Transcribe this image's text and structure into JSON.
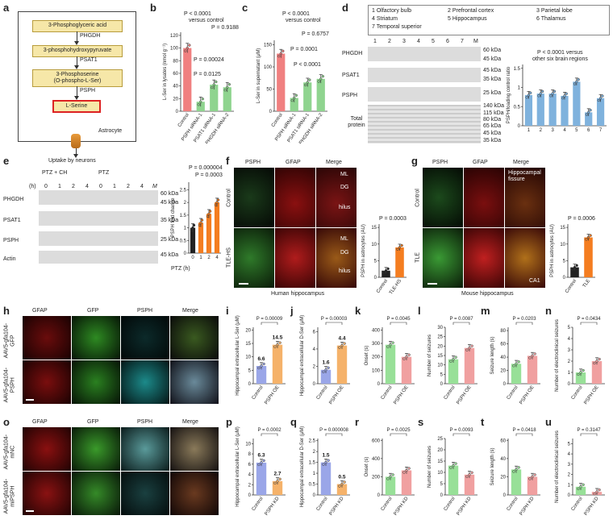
{
  "panels": {
    "a": {
      "label": "a",
      "pathway": [
        "3-Phosphoglyceric acid",
        "3-phosphohydroxypyruvate",
        "3-Phosphoserine\n(O-phospho-L-Ser)",
        "L-Serine"
      ],
      "enzymes": [
        "PHGDH",
        "PSAT1",
        "PSPH"
      ],
      "cell": "Astrocyte",
      "uptake": "Uptake by neurons"
    },
    "b": {
      "label": "b",
      "stats": [
        "P < 0.0001",
        "versus control",
        "P = 0.9188",
        "P = 0.00024",
        "P = 0.0125"
      ]
    },
    "c": {
      "label": "c",
      "stats": [
        "P < 0.0001",
        "versus control",
        "P = 0.6757",
        "P = 0.0001",
        "P < 0.0001"
      ]
    },
    "d": {
      "label": "d",
      "legend": [
        "1 Olfactory bulb",
        "2 Prefrontal cortex",
        "3 Parietal lobe",
        "4 Striatum",
        "5 Hippocampus",
        "6 Thalamus",
        "7 Temporal superior"
      ],
      "lanes": [
        "1",
        "2",
        "3",
        "4",
        "5",
        "6",
        "7",
        "M"
      ],
      "rows": [
        "PHGDH",
        "PSAT1",
        "PSPH",
        "Total protein"
      ],
      "mw": [
        "60 kDa",
        "45 kDa",
        "45 kDa",
        "35 kDa",
        "25 kDa",
        "140 kDa",
        "115 kDa",
        "80 kDa",
        "65 kDa",
        "45 kDa",
        "35 kDa"
      ],
      "stats": [
        "P < 0.0001 versus",
        "other six brain regions"
      ]
    },
    "e": {
      "label": "e",
      "conditions": [
        "PTZ + CH",
        "PTZ"
      ],
      "time_label": "(h)",
      "times": [
        "0",
        "1",
        "2",
        "4",
        "0",
        "1",
        "2",
        "4",
        "M"
      ],
      "rows": [
        "PHGDH",
        "PSAT1",
        "PSPH",
        "Actin"
      ],
      "mw": [
        "60 kDa",
        "45 kDa",
        "35 kDa",
        "25 kDa",
        "45 kDa"
      ],
      "stats": [
        "P = 0.000004",
        "P = 0.0003"
      ],
      "xlab": "PTZ (h)"
    },
    "f": {
      "label": "f",
      "cols": [
        "PSPH",
        "GFAP",
        "Merge"
      ],
      "rows": [
        "Control",
        "TLE-HS"
      ],
      "regions": [
        "ML",
        "DG",
        "hilus",
        "ML",
        "DG",
        "hilus"
      ],
      "caption": "Human hippocampus",
      "stats": [
        "P = 0.0003"
      ]
    },
    "g": {
      "label": "g",
      "cols": [
        "PSPH",
        "GFAP",
        "Merge"
      ],
      "rows": [
        "Control",
        "TLE"
      ],
      "regions": [
        "Hippocampal fissure",
        "CA1"
      ],
      "caption": "Mouse hippocampus",
      "stats": [
        "P = 0.0006"
      ]
    },
    "h": {
      "label": "h",
      "cols": [
        "GFAP",
        "GFP",
        "PSPH",
        "Merge"
      ],
      "rows": [
        "AAV5-gfa104-GFP",
        "AAV5-gfa104-PSPH"
      ]
    },
    "o": {
      "label": "o",
      "cols": [
        "GFAP",
        "GFP",
        "PSPH",
        "Merge"
      ],
      "rows": [
        "AAV5-gfa104-mNC",
        "AAV5-gfa104-miPSPH"
      ]
    }
  },
  "chart_data": [
    {
      "id": "b",
      "type": "bar",
      "categories": [
        "Control",
        "PSPH siRNA-1",
        "PSAT1 siRNA-1",
        "PHGDH siRNA-2"
      ],
      "values": [
        100,
        15,
        42,
        38
      ],
      "ylabel": "L-Ser in lysates (nmol g⁻¹)",
      "ylim": [
        0,
        125
      ],
      "yticks": [
        0,
        20,
        40,
        60,
        80,
        100,
        120
      ],
      "colors": [
        "#f08080",
        "#8fd48f",
        "#8fd48f",
        "#8fd48f"
      ]
    },
    {
      "id": "c",
      "type": "bar",
      "categories": [
        "Control",
        "PSPH siRNA-1",
        "PSAT1 siRNA-1",
        "PHGDH siRNA-2"
      ],
      "values": [
        130,
        30,
        65,
        73
      ],
      "ylabel": "L-Ser in supernatant (μM)",
      "ylim": [
        0,
        160
      ],
      "yticks": [
        0,
        50,
        100,
        150
      ],
      "colors": [
        "#f08080",
        "#8fd48f",
        "#8fd48f",
        "#8fd48f"
      ]
    },
    {
      "id": "d",
      "type": "bar",
      "categories": [
        "1",
        "2",
        "3",
        "4",
        "5",
        "6",
        "7"
      ],
      "values": [
        0.8,
        0.84,
        0.84,
        0.78,
        1.15,
        0.35,
        0.72
      ],
      "ylabel": "PSPH/loading control ratio",
      "ylim": [
        0,
        1.6
      ],
      "yticks": [
        0,
        0.5,
        1.0,
        1.5
      ],
      "colors": [
        "#7fb2dd",
        "#7fb2dd",
        "#7fb2dd",
        "#7fb2dd",
        "#7fb2dd",
        "#7fb2dd",
        "#7fb2dd"
      ]
    },
    {
      "id": "e",
      "type": "bar",
      "categories": [
        "0",
        "1",
        "2",
        "4"
      ],
      "values": [
        1.0,
        1.2,
        1.55,
        2.0
      ],
      "ylabel": "PSPH fold change",
      "ylim": [
        0,
        2.8
      ],
      "yticks": [
        0,
        0.5,
        1.0,
        1.5,
        2.0,
        2.5
      ],
      "colors": [
        "#222222",
        "#f47d20",
        "#f47d20",
        "#f47d20"
      ]
    },
    {
      "id": "f",
      "type": "bar",
      "categories": [
        "Control",
        "TLE-HS"
      ],
      "values": [
        2,
        9
      ],
      "ylabel": "PSPH in astrocytes (AU)",
      "ylim": [
        0,
        16
      ],
      "yticks": [
        0,
        5,
        10,
        15
      ],
      "colors": [
        "#222222",
        "#f47d20"
      ]
    },
    {
      "id": "g",
      "type": "bar",
      "categories": [
        "Control",
        "TLE"
      ],
      "values": [
        3,
        12
      ],
      "ylabel": "PSPH in astrocytes (AU)",
      "ylim": [
        0,
        16
      ],
      "yticks": [
        0,
        5,
        10,
        15
      ],
      "colors": [
        "#222222",
        "#f47d20"
      ]
    },
    {
      "id": "i",
      "type": "bar",
      "categories": [
        "Control",
        "PSPH OE"
      ],
      "values": [
        6.6,
        14.5
      ],
      "ylabel": "Hippocampal extracellular L-Ser (μM)",
      "ylim": [
        0,
        21
      ],
      "yticks": [
        0,
        5,
        10,
        15,
        20
      ],
      "colors": [
        "#9aa6e8",
        "#f5b26a"
      ],
      "labels": [
        "6.6",
        "14.5"
      ],
      "stat": "P = 0.00009"
    },
    {
      "id": "j",
      "type": "bar",
      "categories": [
        "Control",
        "PSPH OE"
      ],
      "values": [
        1.6,
        4.4
      ],
      "ylabel": "Hippocampal extracellular D-Ser (μM)",
      "ylim": [
        0,
        6.5
      ],
      "yticks": [
        0,
        2,
        4,
        6
      ],
      "colors": [
        "#9aa6e8",
        "#f5b26a"
      ],
      "labels": [
        "1.6",
        "4.4"
      ],
      "stat": "P = 0.00003"
    },
    {
      "id": "k",
      "type": "bar",
      "categories": [
        "Control",
        "PSPH OE"
      ],
      "values": [
        290,
        200
      ],
      "ylabel": "Onset (s)",
      "ylim": [
        0,
        420
      ],
      "yticks": [
        0,
        100,
        200,
        300,
        400
      ],
      "colors": [
        "#98e098",
        "#f0a0a0"
      ],
      "stat": "P = 0.0045"
    },
    {
      "id": "l",
      "type": "bar",
      "categories": [
        "Control",
        "PSPH OE"
      ],
      "values": [
        13,
        19
      ],
      "ylabel": "Number of seizures",
      "ylim": [
        0,
        30
      ],
      "yticks": [
        0,
        5,
        10,
        15,
        20,
        25,
        30
      ],
      "colors": [
        "#98e098",
        "#f0a0a0"
      ],
      "stat": "P = 0.0087"
    },
    {
      "id": "m",
      "type": "bar",
      "categories": [
        "Control",
        "PSPH OE"
      ],
      "values": [
        30,
        42
      ],
      "ylabel": "Seizure length (s)",
      "ylim": [
        0,
        85
      ],
      "yticks": [
        0,
        20,
        40,
        60,
        80
      ],
      "colors": [
        "#98e098",
        "#f0a0a0"
      ],
      "stat": "P = 0.0203"
    },
    {
      "id": "n",
      "type": "bar",
      "categories": [
        "Control",
        "PSPH OE"
      ],
      "values": [
        1,
        2
      ],
      "ylabel": "Number of electroclinical seizures",
      "ylim": [
        0,
        5
      ],
      "yticks": [
        0,
        1,
        2,
        3,
        4,
        5
      ],
      "colors": [
        "#98e098",
        "#f0a0a0"
      ],
      "stat": "P = 0.0434"
    },
    {
      "id": "p",
      "type": "bar",
      "categories": [
        "Control",
        "PSPH KD"
      ],
      "values": [
        6.3,
        2.7
      ],
      "ylabel": "Hippocampal extracellular L-Ser (μM)",
      "ylim": [
        0,
        11
      ],
      "yticks": [
        0,
        2,
        4,
        6,
        8,
        10
      ],
      "colors": [
        "#9aa6e8",
        "#f5b26a"
      ],
      "labels": [
        "6.3",
        "2.7"
      ],
      "stat": "P = 0.0002"
    },
    {
      "id": "q",
      "type": "bar",
      "categories": [
        "Control",
        "PSPH KD"
      ],
      "values": [
        1.5,
        0.5
      ],
      "ylabel": "Hippocampal extracellular D-Ser (μM)",
      "ylim": [
        0,
        2.6
      ],
      "yticks": [
        0,
        0.5,
        1.0,
        1.5,
        2.0,
        2.5
      ],
      "colors": [
        "#9aa6e8",
        "#f5b26a"
      ],
      "labels": [
        "1.5",
        "0.5"
      ],
      "stat": "P = 0.000008"
    },
    {
      "id": "r",
      "type": "bar",
      "categories": [
        "Control",
        "PSPH KD"
      ],
      "values": [
        200,
        270
      ],
      "ylabel": "Onset (s)",
      "ylim": [
        0,
        620
      ],
      "yticks": [
        0,
        200,
        400,
        600
      ],
      "colors": [
        "#98e098",
        "#f0a0a0"
      ],
      "stat": "P = 0.0025"
    },
    {
      "id": "s",
      "type": "bar",
      "categories": [
        "Control",
        "PSPH KD"
      ],
      "values": [
        13,
        9
      ],
      "ylabel": "Number of seizures",
      "ylim": [
        0,
        25
      ],
      "yticks": [
        0,
        5,
        10,
        15,
        20,
        25
      ],
      "colors": [
        "#98e098",
        "#f0a0a0"
      ],
      "stat": "P = 0.0093"
    },
    {
      "id": "t",
      "type": "bar",
      "categories": [
        "Control",
        "PSPH KD"
      ],
      "values": [
        28,
        20
      ],
      "ylabel": "Seizure length (s)",
      "ylim": [
        0,
        62
      ],
      "yticks": [
        0,
        20,
        40,
        60
      ],
      "colors": [
        "#98e098",
        "#f0a0a0"
      ],
      "stat": "P = 0.0418"
    },
    {
      "id": "u",
      "type": "bar",
      "categories": [
        "Control",
        "PSPH KD"
      ],
      "values": [
        0.8,
        0.3
      ],
      "ylabel": "Number of electroclinical seizures",
      "ylim": [
        0,
        5.5
      ],
      "yticks": [
        0,
        1,
        2,
        3,
        4,
        5
      ],
      "colors": [
        "#98e098",
        "#f0a0a0"
      ],
      "stat": "P = 0.3147"
    }
  ]
}
